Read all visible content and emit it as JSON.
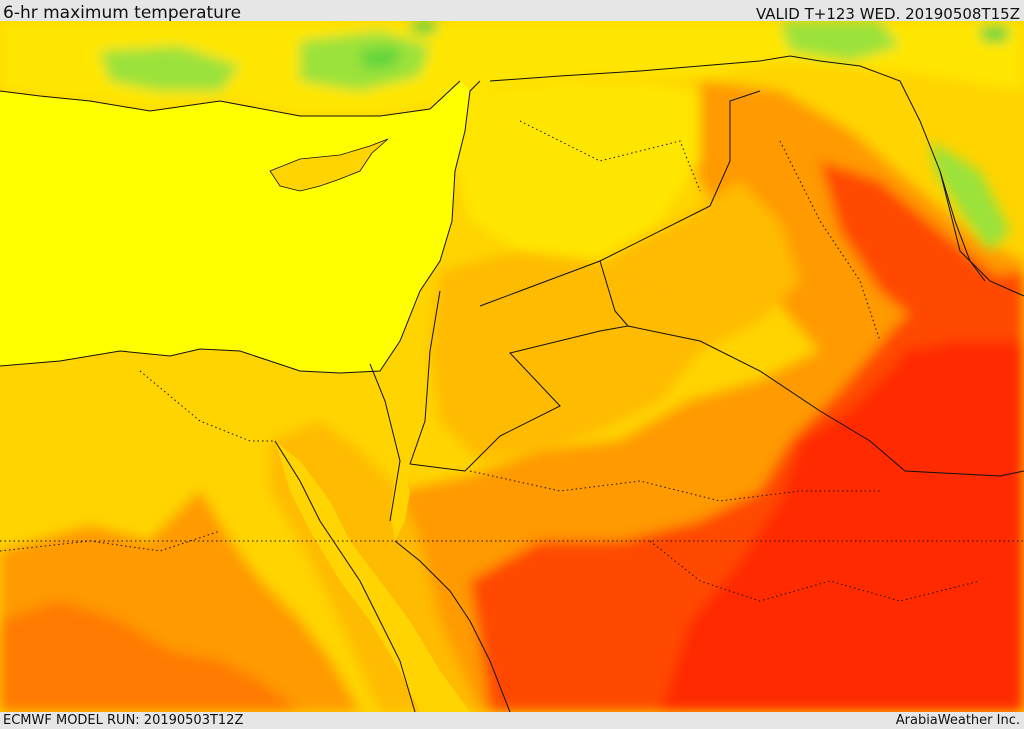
{
  "header": {
    "title": "6-hr maximum temperature",
    "valid": "VALID T+123 WED. 20190508T15Z"
  },
  "footer": {
    "model_run": "ECMWF MODEL RUN: 20190503T12Z",
    "credit": "ArabiaWeather Inc."
  },
  "map": {
    "field": "6-hr maximum temperature",
    "colors": {
      "cool_green": "#9be23a",
      "bright_green": "#5fd43c",
      "yellow": "#ffff00",
      "pale_gold": "#ffe600",
      "gold": "#ffd400",
      "orange_light": "#ffbb00",
      "orange": "#ff9a00",
      "orange_dark": "#ff7a00",
      "red_orange": "#ff4a00",
      "red": "#ff2a00",
      "border": "#111111"
    }
  }
}
